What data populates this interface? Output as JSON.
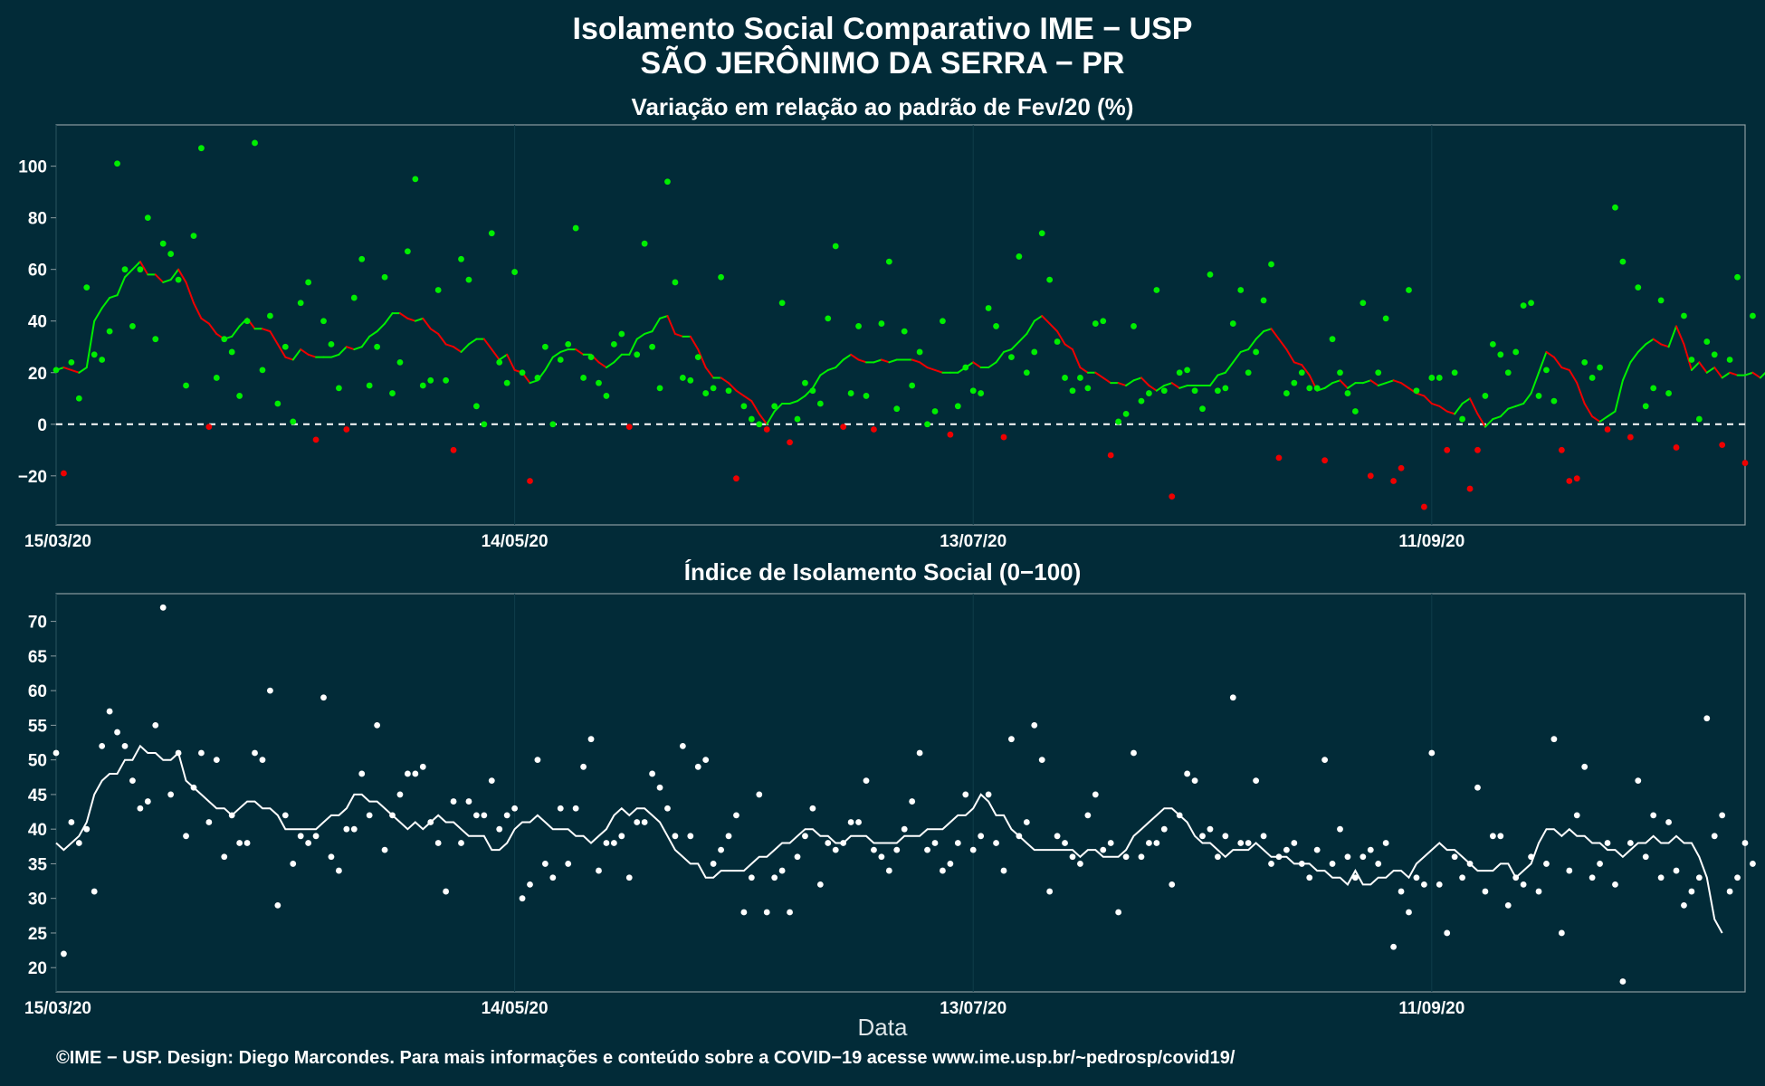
{
  "title": "Isolamento Social Comparativo IME − USP",
  "subtitle": "SÃO JERÔNIMO DA SERRA − PR",
  "xlabel": "Data",
  "footer": "©IME − USP. Design: Diego Marcondes. Para mais informações e conteúdo sobre a COVID−19 acesse www.ime.usp.br/~pedrosp/covid19/",
  "colors": {
    "background": "#022b38",
    "positive": "#00ee00",
    "negative": "#ee0000",
    "index": "#ffffff",
    "frame": "#8c9ca1"
  },
  "chart_data": [
    {
      "type": "scatter",
      "title": "Variação em relação ao padrão de Fev/20 (%)",
      "x_start": "15/03/20",
      "x_ticks": [
        "15/03/20",
        "14/05/20",
        "13/07/20",
        "11/09/20"
      ],
      "x_tick_days": [
        0,
        60,
        120,
        180
      ],
      "x_range_days": [
        0,
        221
      ],
      "ylim": [
        -39,
        116
      ],
      "y_ticks": [
        -20,
        0,
        20,
        40,
        60,
        80,
        100
      ],
      "reference_line": 0,
      "color_rule": "green when moving-average rises, red when it falls",
      "values": [
        21,
        -19,
        24,
        10,
        53,
        27,
        25,
        36,
        101,
        60,
        38,
        60,
        80,
        33,
        70,
        66,
        56,
        15,
        73,
        107,
        -1,
        18,
        33,
        28,
        11,
        40,
        109,
        21,
        42,
        8,
        30,
        1,
        47,
        55,
        -6,
        40,
        31,
        14,
        -2,
        49,
        64,
        15,
        30,
        57,
        12,
        24,
        67,
        95,
        15,
        17,
        52,
        17,
        -10,
        64,
        56,
        7,
        0,
        74,
        24,
        16,
        59,
        20,
        -22,
        18,
        30,
        0,
        25,
        31,
        76,
        18,
        26,
        16,
        11,
        31,
        35,
        -1,
        27,
        70,
        30,
        14,
        94,
        55,
        18,
        17,
        26,
        12,
        14,
        57,
        13,
        -21,
        7,
        2,
        0,
        -2,
        7,
        47,
        -7,
        2,
        16,
        13,
        8,
        41,
        69,
        -1,
        12,
        38,
        11,
        -2,
        39,
        63,
        6,
        36,
        15,
        28,
        0,
        5,
        40,
        -4,
        7,
        22,
        13,
        12,
        45,
        38,
        -5,
        26,
        65,
        20,
        28,
        74,
        56,
        32,
        18,
        13,
        18,
        14,
        39,
        40,
        -12,
        1,
        4,
        38,
        9,
        12,
        52,
        13,
        -28,
        20,
        21,
        13,
        6,
        58,
        13,
        14,
        39,
        52,
        20,
        28,
        48,
        62,
        -13,
        12,
        16,
        20,
        14,
        14,
        -14,
        33,
        20,
        12,
        5,
        47,
        -20,
        20,
        41,
        -22,
        -17,
        52,
        13,
        -32,
        18,
        18,
        -10,
        20,
        2,
        -25,
        -10,
        11,
        31,
        27,
        20,
        28,
        46,
        47,
        11,
        21,
        9,
        -10,
        -22,
        -21,
        24,
        18,
        22,
        -2,
        84,
        63,
        -5,
        53,
        7,
        14,
        48,
        12,
        -9,
        42,
        25,
        2,
        32,
        27,
        -8,
        25,
        57,
        -15,
        42
      ],
      "moving_average": [
        21,
        22,
        21,
        20,
        22,
        40,
        45,
        49,
        50,
        57,
        60,
        63,
        58,
        58,
        55,
        56,
        60,
        55,
        47,
        41,
        39,
        35,
        33,
        34,
        38,
        41,
        37,
        37,
        36,
        31,
        26,
        25,
        29,
        27,
        26,
        26,
        26,
        27,
        30,
        29,
        30,
        34,
        36,
        39,
        43,
        43,
        41,
        40,
        41,
        37,
        35,
        31,
        30,
        28,
        31,
        33,
        33,
        29,
        25,
        27,
        21,
        20,
        16,
        17,
        21,
        26,
        28,
        29,
        29,
        27,
        27,
        24,
        22,
        24,
        27,
        27,
        33,
        35,
        36,
        41,
        42,
        35,
        34,
        34,
        29,
        22,
        18,
        18,
        16,
        13,
        11,
        9,
        4,
        0,
        5,
        8,
        8,
        9,
        11,
        14,
        19,
        21,
        22,
        25,
        27,
        25,
        24,
        24,
        25,
        24,
        25,
        25,
        25,
        24,
        22,
        21,
        20,
        20,
        20,
        22,
        24,
        22,
        22,
        24,
        28,
        29,
        32,
        35,
        40,
        42,
        39,
        36,
        31,
        29,
        22,
        20,
        20,
        18,
        16,
        16,
        15,
        17,
        18,
        15,
        13,
        15,
        16,
        14,
        15,
        15,
        15,
        15,
        19,
        20,
        24,
        28,
        29,
        33,
        36,
        37,
        33,
        29,
        24,
        23,
        19,
        13,
        14,
        16,
        17,
        14,
        16,
        16,
        17,
        15,
        16,
        17,
        16,
        14,
        12,
        11,
        8,
        7,
        5,
        4,
        8,
        10,
        4,
        -1,
        2,
        3,
        6,
        7,
        8,
        12,
        20,
        28,
        26,
        22,
        21,
        16,
        8,
        3,
        1,
        3,
        5,
        17,
        24,
        28,
        31,
        33,
        31,
        30,
        38,
        31,
        21,
        24,
        20,
        22,
        18,
        20,
        19,
        19,
        20,
        18,
        21,
        21,
        21
      ]
    },
    {
      "type": "scatter",
      "title": "Índice de Isolamento Social (0−100)",
      "x_start": "15/03/20",
      "x_ticks": [
        "15/03/20",
        "14/05/20",
        "13/07/20",
        "11/09/20"
      ],
      "x_tick_days": [
        0,
        60,
        120,
        180
      ],
      "x_range_days": [
        0,
        221
      ],
      "ylim": [
        16.5,
        74
      ],
      "y_ticks": [
        20,
        25,
        30,
        35,
        40,
        45,
        50,
        55,
        60,
        65,
        70
      ],
      "values": [
        51,
        22,
        41,
        38,
        40,
        31,
        52,
        57,
        54,
        52,
        47,
        43,
        44,
        55,
        72,
        45,
        51,
        39,
        46,
        51,
        41,
        50,
        36,
        42,
        38,
        38,
        51,
        50,
        60,
        29,
        42,
        35,
        39,
        38,
        39,
        59,
        36,
        34,
        40,
        40,
        48,
        42,
        55,
        37,
        42,
        45,
        48,
        48,
        49,
        41,
        38,
        31,
        44,
        38,
        44,
        42,
        42,
        47,
        40,
        42,
        43,
        30,
        32,
        50,
        35,
        33,
        43,
        35,
        43,
        49,
        53,
        34,
        38,
        38,
        39,
        33,
        41,
        41,
        48,
        46,
        43,
        39,
        52,
        39,
        49,
        50,
        35,
        37,
        39,
        42,
        28,
        33,
        45,
        28,
        33,
        34,
        28,
        36,
        39,
        43,
        32,
        38,
        37,
        38,
        41,
        41,
        47,
        37,
        36,
        34,
        37,
        40,
        44,
        51,
        37,
        38,
        34,
        35,
        38,
        45,
        37,
        39,
        45,
        38,
        34,
        53,
        39,
        41,
        55,
        50,
        31,
        39,
        38,
        36,
        35,
        42,
        45,
        37,
        38,
        28,
        36,
        51,
        36,
        38,
        38,
        40,
        32,
        42,
        48,
        47,
        39,
        40,
        36,
        39,
        59,
        38,
        38,
        47,
        39,
        35,
        36,
        37,
        38,
        35,
        33,
        37,
        50,
        35,
        40,
        36,
        33,
        36,
        37,
        35,
        38,
        23,
        31,
        28,
        33,
        32,
        51,
        32,
        25,
        36,
        33,
        35,
        46,
        31,
        39,
        39,
        29,
        33,
        32,
        36,
        31,
        35,
        53,
        25,
        34,
        42,
        49,
        33,
        35,
        38,
        32,
        18,
        38,
        47,
        36,
        42,
        33,
        41,
        34,
        29,
        31,
        33,
        56,
        39,
        42,
        31,
        33,
        38,
        35
      ]
    },
    {
      "type": "line",
      "title": "Índice de Isolamento Social (0−100) moving average",
      "moving_average": [
        38,
        37,
        38,
        39,
        41,
        45,
        47,
        48,
        48,
        50,
        50,
        52,
        51,
        51,
        50,
        50,
        51,
        47,
        46,
        45,
        44,
        43,
        43,
        42,
        43,
        44,
        44,
        43,
        43,
        42,
        40,
        40,
        40,
        40,
        40,
        41,
        42,
        42,
        43,
        45,
        45,
        44,
        44,
        43,
        42,
        41,
        40,
        41,
        40,
        41,
        42,
        41,
        41,
        40,
        39,
        39,
        39,
        37,
        37,
        38,
        40,
        41,
        41,
        42,
        41,
        40,
        40,
        40,
        39,
        39,
        38,
        39,
        40,
        42,
        43,
        42,
        43,
        43,
        42,
        41,
        39,
        37,
        36,
        35,
        35,
        33,
        33,
        34,
        34,
        34,
        34,
        35,
        36,
        36,
        37,
        38,
        38,
        39,
        40,
        40,
        39,
        39,
        38,
        38,
        39,
        39,
        39,
        38,
        38,
        38,
        38,
        39,
        39,
        39,
        40,
        40,
        40,
        41,
        42,
        42,
        43,
        45,
        44,
        42,
        42,
        40,
        39,
        38,
        37,
        37,
        37,
        37,
        37,
        37,
        36,
        37,
        37,
        36,
        36,
        36,
        37,
        39,
        40,
        41,
        42,
        43,
        43,
        42,
        41,
        39,
        38,
        38,
        37,
        36,
        37,
        37,
        37,
        38,
        37,
        36,
        36,
        36,
        35,
        35,
        35,
        34,
        34,
        33,
        33,
        32,
        34,
        32,
        32,
        33,
        33,
        34,
        34,
        33,
        35,
        36,
        37,
        38,
        37,
        37,
        36,
        35,
        34,
        34,
        34,
        35,
        35,
        33,
        34,
        35,
        38,
        40,
        40,
        39,
        40,
        39,
        39,
        38,
        38,
        37,
        37,
        36,
        37,
        38,
        38,
        39,
        38,
        38,
        39,
        38,
        38,
        36,
        33,
        27,
        25
      ]
    }
  ]
}
